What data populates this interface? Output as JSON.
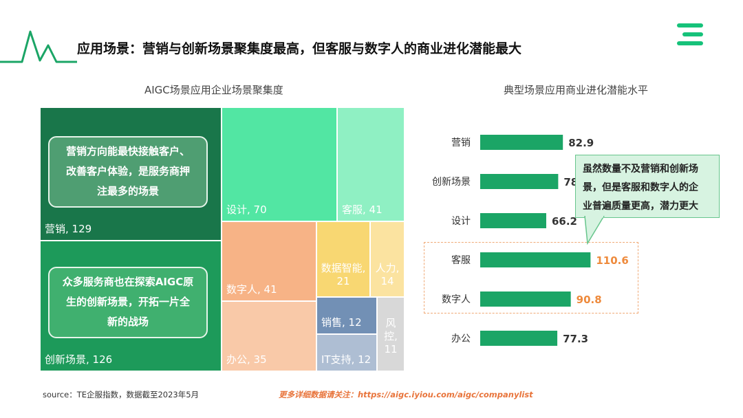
{
  "header": {
    "title": "应用场景：营销与创新场景聚集度最高，但客服与数字人的商业进化潜能最大"
  },
  "colors": {
    "accent_green": "#1ba566",
    "highlight_orange": "#ee8a3c"
  },
  "chart_data": [
    {
      "type": "treemap",
      "title": "AIGC场景应用企业场景聚集度",
      "items": [
        {
          "label": "营销, 129",
          "name": "营销",
          "value": 129,
          "color": "#19764a"
        },
        {
          "label": "创新场景, 126",
          "name": "创新场景",
          "value": 126,
          "color": "#1d9a5a"
        },
        {
          "label": "设计, 70",
          "name": "设计",
          "value": 70,
          "color": "#52e6a3"
        },
        {
          "label": "客服, 41",
          "name": "客服",
          "value": 41,
          "color": "#8ff0c3"
        },
        {
          "label": "数字人, 41",
          "name": "数字人",
          "value": 41,
          "color": "#f7b386"
        },
        {
          "label": "办公, 35",
          "name": "办公",
          "value": 35,
          "color": "#f9c9a8"
        },
        {
          "label": "数据智能, 21",
          "name": "数据智能",
          "value": 21,
          "color": "#f8d772",
          "lines": [
            "数据智能,",
            "21"
          ]
        },
        {
          "label": "人力, 14",
          "name": "人力",
          "value": 14,
          "color": "#fbe3a0",
          "lines": [
            "人力,",
            "14"
          ]
        },
        {
          "label": "销售, 12",
          "name": "销售",
          "value": 12,
          "color": "#7290b5"
        },
        {
          "label": "IT支持, 12",
          "name": "IT支持",
          "value": 12,
          "color": "#aebed3"
        },
        {
          "label": "风控, 11",
          "name": "风控",
          "value": 11,
          "color": "#d8d8d8",
          "lines": [
            "风",
            "控,",
            "11"
          ]
        }
      ],
      "notes": [
        {
          "lines": [
            "营销方向能最快接触客户、",
            "改善客户体验，是服务商押",
            "注最多的场景"
          ]
        },
        {
          "lines": [
            "众多服务商也在探索AIGC原",
            "生的创新场景，开拓一片全",
            "新的战场"
          ]
        }
      ]
    },
    {
      "type": "bar",
      "orientation": "horizontal",
      "title": "典型场景应用商业进化潜能水平",
      "categories": [
        "营销",
        "创新场景",
        "设计",
        "客服",
        "数字人",
        "办公"
      ],
      "values": [
        82.9,
        78.2,
        66.2,
        110.6,
        90.8,
        77.3
      ],
      "highlighted": [
        "客服",
        "数字人"
      ],
      "callout": "虽然数量不及营销和创新场景，但是客服和数字人的企业普遍质量更高，潜力更大",
      "callout_lines": [
        "虽然数量不及营销和创新场",
        "景，但是客服和数字人的企",
        "业普遍质量更高，潜力更大"
      ]
    }
  ],
  "footer": {
    "source": "source：TE企服指数，数据截至2023年5月",
    "more": "更多详细数据请关注：https://aigc.iyiou.com/aigc/companylist"
  }
}
